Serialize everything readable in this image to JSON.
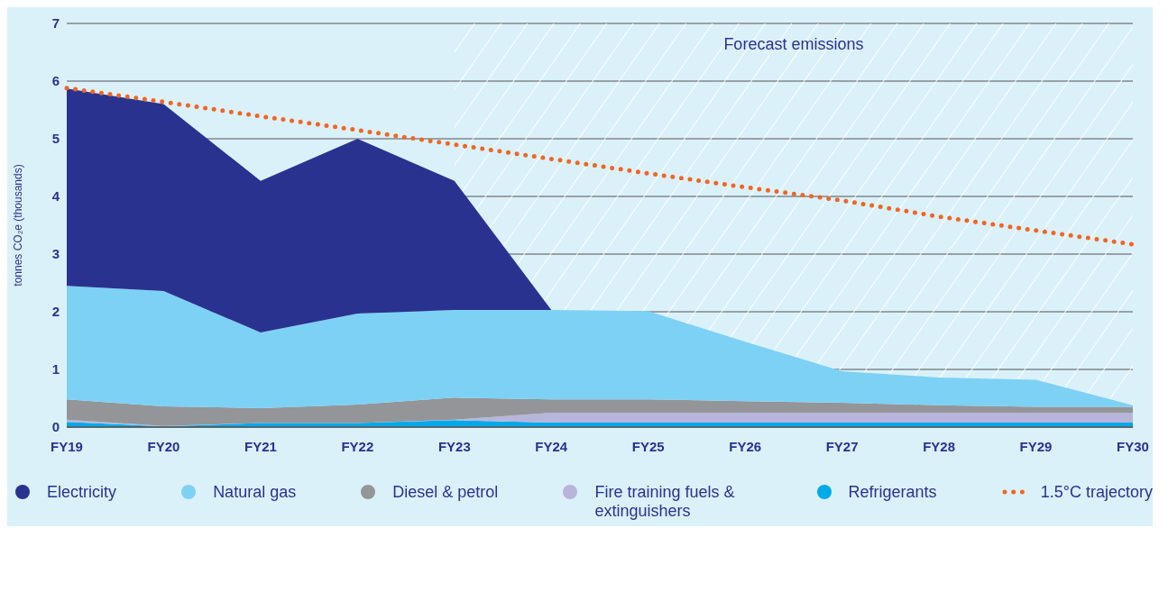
{
  "chart_data": {
    "type": "area",
    "stacked": true,
    "ylabel": "tonnes CO₂e (thousands)",
    "categories": [
      "FY19",
      "FY20",
      "FY21",
      "FY22",
      "FY23",
      "FY24",
      "FY25",
      "FY26",
      "FY27",
      "FY28",
      "FY29",
      "FY30"
    ],
    "series": [
      {
        "name": "Refrigerants",
        "color": "#00a9e8",
        "values": [
          0.09,
          0.01,
          0.07,
          0.07,
          0.12,
          0.08,
          0.08,
          0.08,
          0.08,
          0.08,
          0.08,
          0.08
        ]
      },
      {
        "name": "Fire training fuels & extinguishers",
        "color": "#b8b5da",
        "values": [
          0.04,
          0.01,
          0,
          0,
          0.01,
          0.17,
          0.17,
          0.17,
          0.17,
          0.17,
          0.17,
          0.17
        ]
      },
      {
        "name": "Diesel & petrol",
        "color": "#939598",
        "values": [
          0.35,
          0.34,
          0.26,
          0.32,
          0.38,
          0.23,
          0.23,
          0.2,
          0.17,
          0.13,
          0.1,
          0.1
        ]
      },
      {
        "name": "Natural gas",
        "color": "#7dd1f5",
        "values": [
          1.97,
          2.0,
          1.31,
          1.58,
          1.52,
          1.55,
          1.53,
          1.03,
          0.55,
          0.48,
          0.47,
          0.03
        ]
      },
      {
        "name": "Electricity",
        "color": "#2a3290",
        "values": [
          3.42,
          3.24,
          2.63,
          3.03,
          2.24,
          0,
          null,
          null,
          null,
          null,
          null,
          null
        ]
      },
      {
        "name": "1.5°C trajectory",
        "color": "#f26522",
        "type": "line",
        "line_style": "dotted",
        "values": [
          5.88,
          5.64,
          5.39,
          5.15,
          4.9,
          4.65,
          4.4,
          4.16,
          3.93,
          3.65,
          3.41,
          3.17
        ]
      }
    ],
    "ylim": [
      0,
      7
    ],
    "yticks": [
      0,
      1,
      2,
      3,
      4,
      5,
      6,
      7
    ],
    "grid": "y",
    "legend": "bottom",
    "marker": "none",
    "bands": [
      {
        "axis": "x",
        "from": "FY23",
        "to": "FY30",
        "label": "Forecast emissions"
      }
    ]
  }
}
